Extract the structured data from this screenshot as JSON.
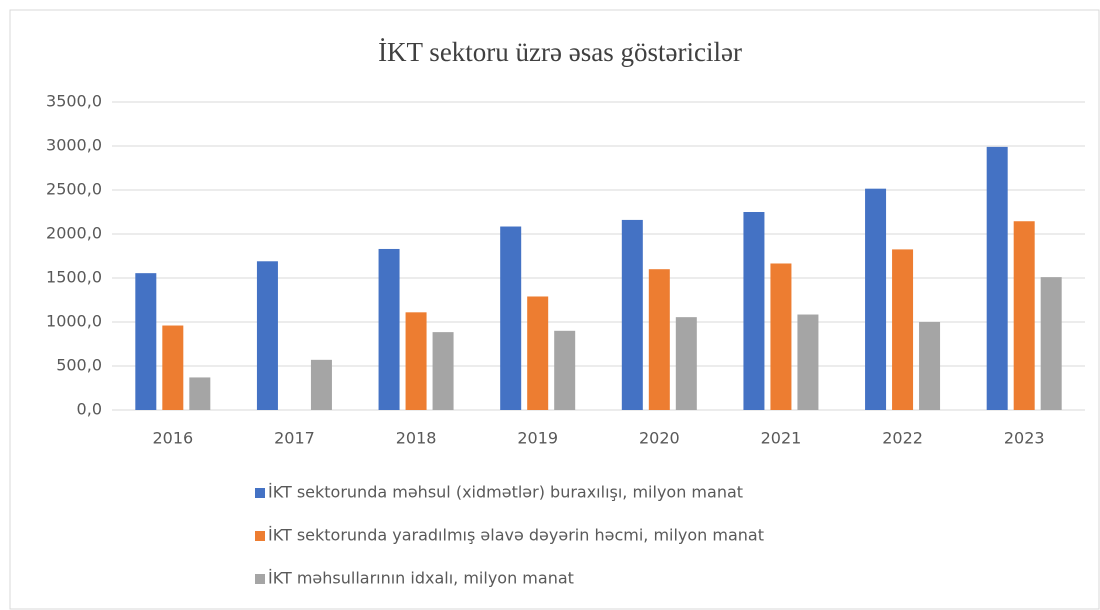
{
  "chart_data": {
    "type": "bar",
    "title": "İKT sektoru üzrə əsas göstəricilər",
    "categories": [
      "2016",
      "2017",
      "2018",
      "2019",
      "2020",
      "2021",
      "2022",
      "2023"
    ],
    "series": [
      {
        "name": "İKT sektorunda məhsul (xidmətlər) buraxılışı, milyon manat",
        "color": "#4472c4",
        "values": [
          1555,
          1690,
          1830,
          2085,
          2160,
          2250,
          2515,
          2990
        ]
      },
      {
        "name": "İKT sektorunda yaradılmış əlavə dəyərin həcmi, milyon manat",
        "color": "#ed7d31",
        "values": [
          960,
          null,
          1110,
          1290,
          1600,
          1665,
          1825,
          2145
        ]
      },
      {
        "name": "İKT məhsullarının idxalı, milyon manat",
        "color": "#a5a5a5",
        "values": [
          370,
          570,
          885,
          900,
          1055,
          1085,
          1000,
          1510
        ]
      }
    ],
    "ylim": [
      0,
      3500
    ],
    "yticks": [
      {
        "value": 0,
        "label": "0,0"
      },
      {
        "value": 500,
        "label": "500,0"
      },
      {
        "value": 1000,
        "label": "1000,0"
      },
      {
        "value": 1500,
        "label": "1500,0"
      },
      {
        "value": 2000,
        "label": "2000,0"
      },
      {
        "value": 2500,
        "label": "2500,0"
      },
      {
        "value": 3000,
        "label": "3000,0"
      },
      {
        "value": 3500,
        "label": "3500,0"
      }
    ],
    "grid": true
  }
}
